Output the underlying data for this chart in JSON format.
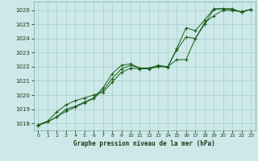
{
  "title": "Graphe pression niveau de la mer (hPa)",
  "bg_color": "#cce8e8",
  "grid_color": "#aacccc",
  "line_color": "#1a5e1a",
  "xlim": [
    -0.5,
    23.5
  ],
  "ylim": [
    1017.5,
    1026.6
  ],
  "yticks": [
    1018,
    1019,
    1020,
    1021,
    1022,
    1023,
    1024,
    1025,
    1026
  ],
  "xticks": [
    0,
    1,
    2,
    3,
    4,
    5,
    6,
    7,
    8,
    9,
    10,
    11,
    12,
    13,
    14,
    15,
    16,
    17,
    18,
    19,
    20,
    21,
    22,
    23
  ],
  "series1_x": [
    0,
    1,
    2,
    3,
    4,
    5,
    6,
    7,
    8,
    9,
    10,
    11,
    12,
    13,
    14,
    15,
    16,
    17,
    18,
    19,
    20,
    21,
    22,
    23
  ],
  "series1_y": [
    1017.9,
    1018.15,
    1018.8,
    1019.3,
    1019.6,
    1019.8,
    1020.0,
    1020.2,
    1020.9,
    1021.6,
    1021.9,
    1021.85,
    1021.85,
    1022.0,
    1022.0,
    1022.5,
    1022.5,
    1024.0,
    1025.1,
    1025.6,
    1026.0,
    1025.95,
    1025.9,
    1026.05
  ],
  "series2_x": [
    0,
    1,
    2,
    3,
    4,
    5,
    6,
    7,
    8,
    9,
    10,
    11,
    12,
    13,
    14,
    15,
    16,
    17,
    18,
    19,
    20,
    21,
    22,
    23
  ],
  "series2_y": [
    1017.85,
    1018.1,
    1018.45,
    1019.0,
    1019.2,
    1019.5,
    1019.8,
    1020.5,
    1021.5,
    1022.1,
    1022.2,
    1021.9,
    1021.9,
    1022.1,
    1022.0,
    1023.2,
    1024.1,
    1024.0,
    1025.0,
    1026.05,
    1026.1,
    1026.1,
    1025.85,
    1026.05
  ],
  "series3_x": [
    0,
    1,
    2,
    3,
    4,
    5,
    6,
    7,
    8,
    9,
    10,
    11,
    12,
    13,
    14,
    15,
    16,
    17,
    18,
    19,
    20,
    21,
    22,
    23
  ],
  "series3_y": [
    1017.85,
    1018.1,
    1018.45,
    1018.85,
    1019.15,
    1019.45,
    1019.75,
    1020.35,
    1021.15,
    1021.85,
    1022.1,
    1021.9,
    1021.9,
    1022.05,
    1021.95,
    1023.3,
    1024.75,
    1024.55,
    1025.3,
    1026.1,
    1026.1,
    1026.05,
    1025.85,
    1026.05
  ]
}
